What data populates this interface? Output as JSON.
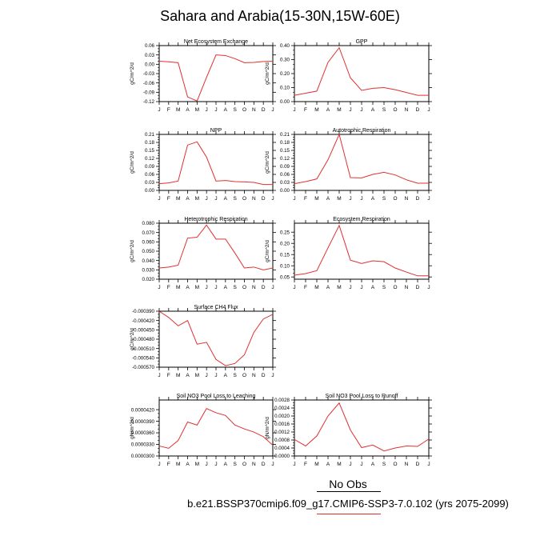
{
  "title": "Sahara and Arabia(15-30N,15W-60E)",
  "legend": {
    "label": "No Obs",
    "color": "#e03030"
  },
  "footer": "b.e21.BSSP370cmip6.f09_g17.CMIP6-SSP3-7.0.102 (yrs 2075-2099)",
  "chart_data": [
    {
      "type": "line",
      "title": "Net Ecosystem Exchange",
      "ylabel": "gC/m^2/d",
      "categories": [
        "J",
        "F",
        "M",
        "A",
        "M",
        "J",
        "J",
        "A",
        "S",
        "O",
        "N",
        "D",
        "J"
      ],
      "yticks": [
        "0.06",
        "0.03",
        "0.00",
        "-0.03",
        "-0.06",
        "-0.09",
        "-0.12"
      ],
      "ylim": [
        -0.12,
        0.06
      ],
      "values": [
        0.01,
        0.008,
        0.005,
        -0.105,
        -0.118,
        -0.042,
        0.03,
        0.028,
        0.018,
        0.005,
        0.006,
        0.009,
        0.01
      ]
    },
    {
      "type": "line",
      "title": "GPP",
      "ylabel": "gC/m^2/d",
      "categories": [
        "J",
        "F",
        "M",
        "A",
        "M",
        "J",
        "J",
        "A",
        "S",
        "O",
        "N",
        "D",
        "J"
      ],
      "yticks": [
        "0.40",
        "0.30",
        "0.20",
        "0.10",
        "0.00"
      ],
      "ylim": [
        0.0,
        0.4
      ],
      "values": [
        0.045,
        0.06,
        0.075,
        0.28,
        0.385,
        0.17,
        0.08,
        0.095,
        0.1,
        0.085,
        0.065,
        0.045,
        0.045
      ]
    },
    {
      "type": "line",
      "title": "NPP",
      "ylabel": "gC/m^2/d",
      "categories": [
        "J",
        "F",
        "M",
        "A",
        "M",
        "J",
        "J",
        "A",
        "S",
        "O",
        "N",
        "D",
        "J"
      ],
      "yticks": [
        "0.21",
        "0.18",
        "0.15",
        "0.12",
        "0.09",
        "0.06",
        "0.03",
        "0.00"
      ],
      "ylim": [
        0.0,
        0.21
      ],
      "values": [
        0.025,
        0.028,
        0.035,
        0.17,
        0.182,
        0.125,
        0.035,
        0.037,
        0.033,
        0.032,
        0.03,
        0.022,
        0.022
      ]
    },
    {
      "type": "line",
      "title": "Autotrophic Respiration",
      "ylabel": "gC/m^2/d",
      "categories": [
        "J",
        "F",
        "M",
        "A",
        "M",
        "J",
        "J",
        "A",
        "S",
        "O",
        "N",
        "D",
        "J"
      ],
      "yticks": [
        "0.21",
        "0.18",
        "0.15",
        "0.12",
        "0.09",
        "0.06",
        "0.03",
        "0.00"
      ],
      "ylim": [
        0.0,
        0.21
      ],
      "values": [
        0.025,
        0.033,
        0.043,
        0.115,
        0.21,
        0.048,
        0.047,
        0.06,
        0.068,
        0.058,
        0.04,
        0.027,
        0.027
      ]
    },
    {
      "type": "line",
      "title": "Heterotrophic Respiration",
      "ylabel": "gC/m^2/d",
      "categories": [
        "J",
        "F",
        "M",
        "A",
        "M",
        "J",
        "J",
        "A",
        "S",
        "O",
        "N",
        "D",
        "J"
      ],
      "yticks": [
        "0.080",
        "0.070",
        "0.060",
        "0.050",
        "0.040",
        "0.030",
        "0.020"
      ],
      "ylim": [
        0.02,
        0.08
      ],
      "values": [
        0.032,
        0.033,
        0.035,
        0.064,
        0.065,
        0.078,
        0.063,
        0.063,
        0.048,
        0.032,
        0.033,
        0.03,
        0.032
      ]
    },
    {
      "type": "line",
      "title": "Ecosystem Respiration",
      "ylabel": "gC/m^2/d",
      "categories": [
        "J",
        "F",
        "M",
        "A",
        "M",
        "J",
        "J",
        "A",
        "S",
        "O",
        "N",
        "D",
        "J"
      ],
      "yticks": [
        "0.25",
        "0.20",
        "0.15",
        "0.10",
        "0.05"
      ],
      "ylim": [
        0.04,
        0.29
      ],
      "values": [
        0.058,
        0.065,
        0.078,
        0.18,
        0.28,
        0.125,
        0.11,
        0.122,
        0.118,
        0.09,
        0.072,
        0.055,
        0.055
      ]
    },
    {
      "type": "line",
      "title": "Surface CH4 Flux",
      "ylabel": "gC/m^2/d",
      "categories": [
        "J",
        "F",
        "M",
        "A",
        "M",
        "J",
        "J",
        "A",
        "S",
        "O",
        "N",
        "D",
        "J"
      ],
      "yticks": [
        "-0.000390",
        "-0.000420",
        "-0.000450",
        "-0.000480",
        "-0.000510",
        "-0.000540",
        "-0.000570"
      ],
      "ylim": [
        -0.00057,
        -0.00039
      ],
      "values": [
        -0.00039,
        -0.00041,
        -0.000437,
        -0.00042,
        -0.000496,
        -0.00049,
        -0.000545,
        -0.000565,
        -0.000558,
        -0.00053,
        -0.000458,
        -0.000415,
        -0.0004
      ]
    },
    {
      "type": "line",
      "title": "Soil NO3 Pool Loss to Leaching",
      "ylabel": "gN/m^2/d",
      "categories": [
        "J",
        "F",
        "M",
        "A",
        "M",
        "J",
        "J",
        "A",
        "S",
        "O",
        "N",
        "D",
        "J"
      ],
      "yticks": [
        "0.0000420",
        "0.0000390",
        "0.0000360",
        "0.0000330",
        "0.0000300"
      ],
      "ylim": [
        3e-05,
        4.45e-05
      ],
      "values": [
        3.26e-05,
        3.2e-05,
        3.4e-05,
        3.88e-05,
        3.8e-05,
        4.23e-05,
        4.12e-05,
        4.05e-05,
        3.8e-05,
        3.7e-05,
        3.62e-05,
        3.5e-05,
        3.28e-05
      ]
    },
    {
      "type": "line",
      "title": "Soil NO3 Pool Loss to Runoff",
      "ylabel": "gN/m^2/d",
      "categories": [
        "J",
        "F",
        "M",
        "A",
        "M",
        "J",
        "J",
        "A",
        "S",
        "O",
        "N",
        "D",
        "J"
      ],
      "yticks": [
        "0.0028",
        "0.0024",
        "0.0020",
        "0.0016",
        "0.0012",
        "0.0008",
        "0.0004",
        "0.0000"
      ],
      "ylim": [
        0.0,
        0.0028
      ],
      "values": [
        0.00083,
        0.0005,
        0.001,
        0.002,
        0.00265,
        0.0013,
        0.00042,
        0.00055,
        0.00025,
        0.0004,
        0.0005,
        0.00048,
        0.00085
      ]
    }
  ]
}
